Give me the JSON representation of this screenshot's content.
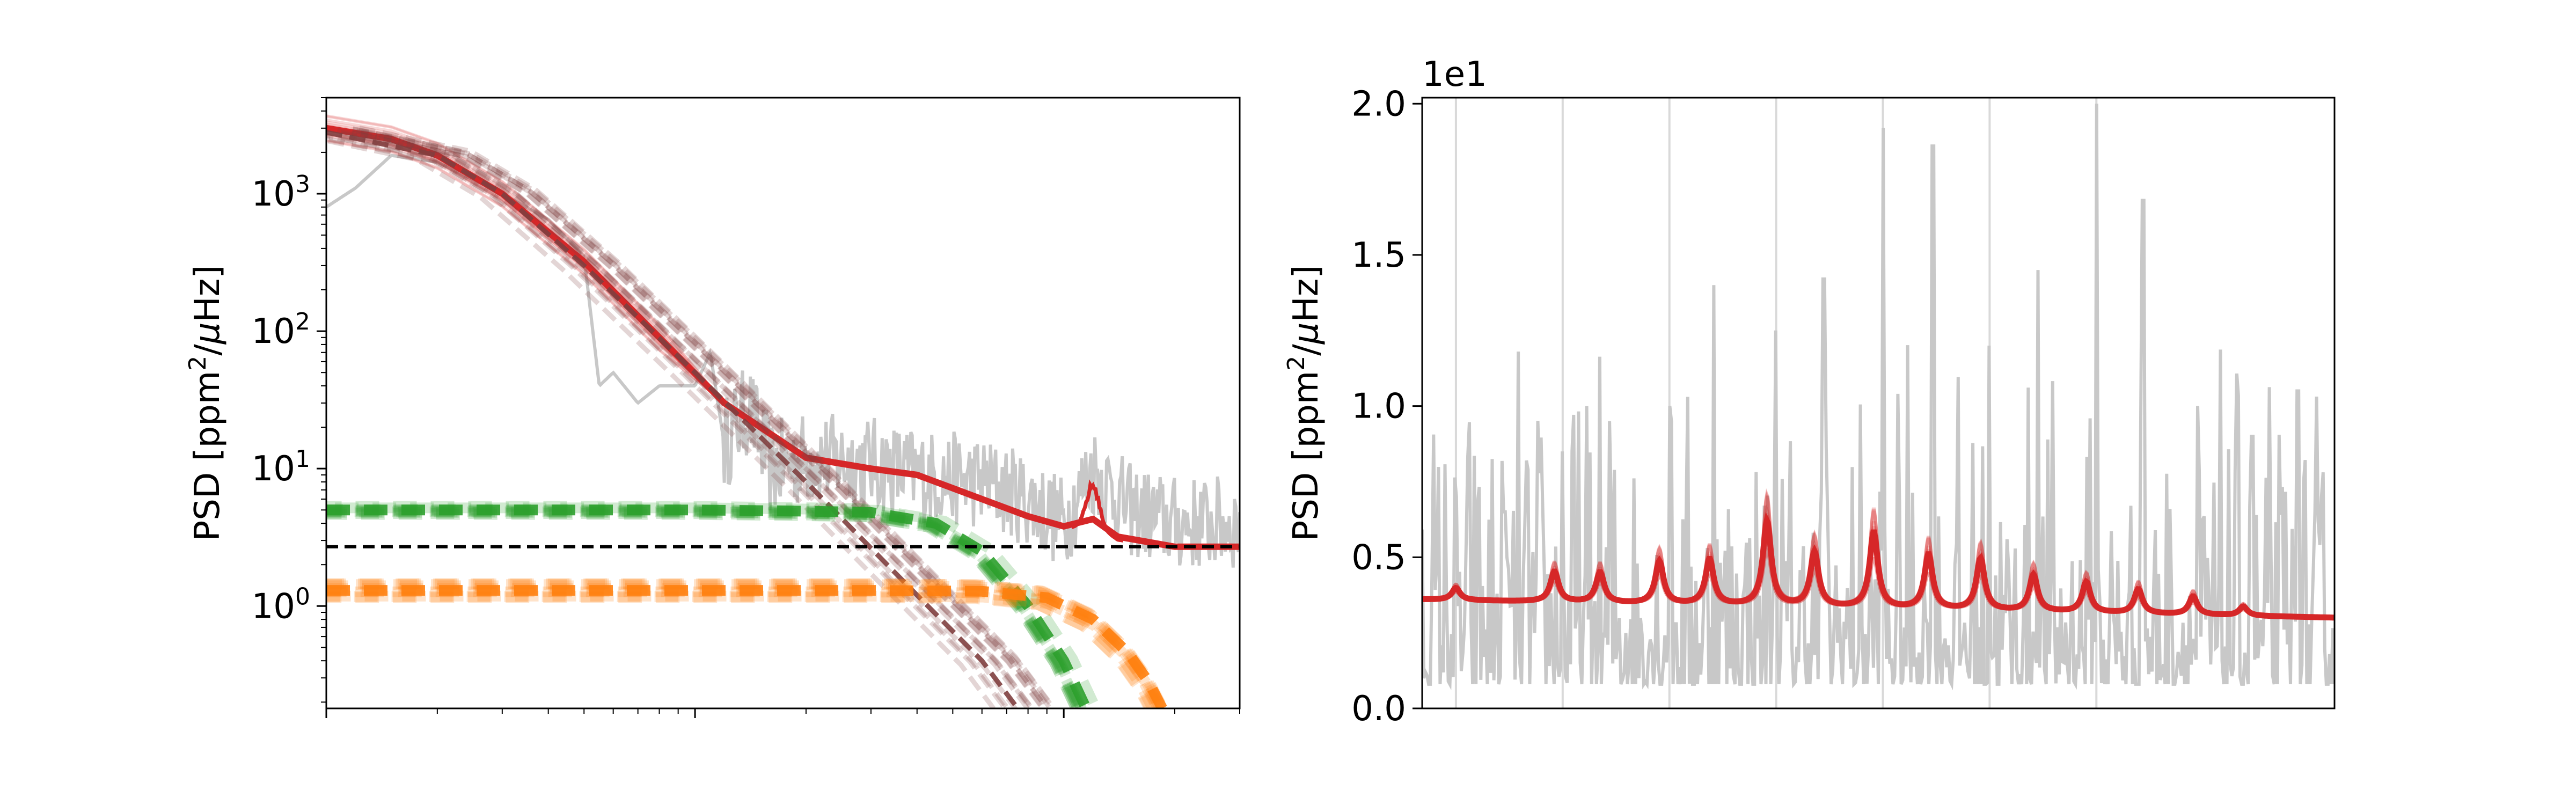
{
  "chart_data": [
    {
      "type": "line",
      "xscale": "log",
      "yscale": "log",
      "xlim": [
        1,
        300
      ],
      "ylim": [
        0.18,
        5000
      ],
      "ylabel": "PSD [ppm$^2$/$\\mu$Hz]",
      "ylabel_parts": {
        "prefix": "PSD [ppm",
        "sup": "2",
        "mid": "/",
        "italic": "μ",
        "suffix": "Hz]"
      },
      "yticks": [
        {
          "value": 1,
          "base": "10",
          "exp": "0"
        },
        {
          "value": 10,
          "base": "10",
          "exp": "1"
        },
        {
          "value": 100,
          "base": "10",
          "exp": "2"
        },
        {
          "value": 1000,
          "base": "10",
          "exp": "3"
        }
      ],
      "xticks_labeled": false,
      "grid": false,
      "series": [
        {
          "role": "observed-psd",
          "color": "#c8c8c8",
          "style": "solid",
          "points": [
            [
              1.0,
              800
            ],
            [
              1.2,
              1100
            ],
            [
              1.5,
              1900
            ],
            [
              2.0,
              1700
            ],
            [
              3.0,
              1000
            ],
            [
              4.0,
              650
            ],
            [
              5.0,
              350
            ],
            [
              5.5,
              40
            ],
            [
              6.0,
              50
            ],
            [
              7.0,
              30
            ],
            [
              8.0,
              40
            ],
            [
              10.0,
              40
            ],
            [
              11.0,
              70
            ],
            [
              12.0,
              15
            ],
            [
              14.0,
              28
            ],
            [
              16.0,
              10
            ],
            [
              20.0,
              12
            ],
            [
              30.0,
              11
            ],
            [
              40.0,
              9
            ],
            [
              60.0,
              8
            ],
            [
              80.0,
              6
            ],
            [
              100.0,
              4
            ],
            [
              120.0,
              10
            ],
            [
              150.0,
              5
            ],
            [
              200.0,
              4
            ],
            [
              300.0,
              4
            ]
          ]
        },
        {
          "role": "model-fit",
          "color": "#d62728",
          "style": "solid",
          "points": [
            [
              1.0,
              3000
            ],
            [
              1.5,
              2500
            ],
            [
              2.0,
              1900
            ],
            [
              3.0,
              1000
            ],
            [
              5.0,
              320
            ],
            [
              8.0,
              90
            ],
            [
              12.0,
              30
            ],
            [
              20.0,
              12
            ],
            [
              30.0,
              10
            ],
            [
              40.0,
              9
            ],
            [
              60.0,
              6
            ],
            [
              80.0,
              4.5
            ],
            [
              100.0,
              3.8
            ],
            [
              120.0,
              4.3
            ],
            [
              140.0,
              3.2
            ],
            [
              200.0,
              2.7
            ],
            [
              300.0,
              2.7
            ]
          ]
        },
        {
          "role": "granulation-component",
          "color": "#7f3f3f",
          "style": "dashed",
          "points": [
            [
              1.0,
              2800
            ],
            [
              2.0,
              1900
            ],
            [
              3.0,
              1000
            ],
            [
              5.0,
              300
            ],
            [
              10.0,
              50
            ],
            [
              20.0,
              8
            ],
            [
              40.0,
              1.2
            ],
            [
              60.0,
              0.4
            ],
            [
              75.0,
              0.18
            ]
          ]
        },
        {
          "role": "granulation-component",
          "color": "#2ca02c",
          "style": "dashed",
          "points": [
            [
              1.0,
              5.0
            ],
            [
              10.0,
              5.0
            ],
            [
              20.0,
              4.9
            ],
            [
              30.0,
              4.8
            ],
            [
              45.0,
              4.0
            ],
            [
              60.0,
              2.5
            ],
            [
              80.0,
              1.0
            ],
            [
              100.0,
              0.4
            ],
            [
              115.0,
              0.18
            ]
          ]
        },
        {
          "role": "granulation-component",
          "color": "#ff7f0e",
          "style": "dashed",
          "points": [
            [
              1.0,
              1.3
            ],
            [
              30.0,
              1.3
            ],
            [
              60.0,
              1.28
            ],
            [
              90.0,
              1.15
            ],
            [
              120.0,
              0.8
            ],
            [
              150.0,
              0.45
            ],
            [
              170.0,
              0.28
            ],
            [
              185.0,
              0.18
            ]
          ]
        },
        {
          "role": "white-noise",
          "color": "#000000",
          "style": "dashed",
          "points": [
            [
              1.0,
              2.7
            ],
            [
              300.0,
              2.7
            ]
          ]
        }
      ]
    },
    {
      "type": "line",
      "xscale": "linear",
      "yscale": "linear",
      "xlim": [
        0,
        100
      ],
      "ylim": [
        0.0,
        2.02
      ],
      "offset_text": "1e1",
      "ylabel": "PSD [ppm$^2$/$\\mu$Hz]",
      "ylabel_parts": {
        "prefix": "PSD [ppm",
        "sup": "2",
        "mid": "/",
        "italic": "μ",
        "suffix": "Hz]"
      },
      "yticks": [
        {
          "value": 0.0,
          "label": "0.0"
        },
        {
          "value": 0.5,
          "label": "0.5"
        },
        {
          "value": 1.0,
          "label": "1.0"
        },
        {
          "value": 1.5,
          "label": "1.5"
        },
        {
          "value": 2.0,
          "label": "2.0"
        }
      ],
      "xticks_labeled": false,
      "grid": false,
      "vertical_lines": [
        3.7,
        15.4,
        27.1,
        38.8,
        50.5,
        62.2,
        73.9
      ],
      "observed_peaks": [
        {
          "x": 3.7,
          "value": 0.7
        },
        {
          "x": 9.0,
          "value": 0.65
        },
        {
          "x": 15.4,
          "value": 0.85
        },
        {
          "x": 20.5,
          "value": 0.95
        },
        {
          "x": 27.1,
          "value": 1.0
        },
        {
          "x": 32.0,
          "value": 1.4
        },
        {
          "x": 38.8,
          "value": 1.25
        },
        {
          "x": 44.0,
          "value": 1.42
        },
        {
          "x": 50.5,
          "value": 1.92
        },
        {
          "x": 56.0,
          "value": 1.86
        },
        {
          "x": 62.2,
          "value": 1.2
        },
        {
          "x": 67.5,
          "value": 1.45
        },
        {
          "x": 73.9,
          "value": 2.0
        },
        {
          "x": 79.0,
          "value": 1.68
        },
        {
          "x": 85.0,
          "value": 1.0
        },
        {
          "x": 91.0,
          "value": 0.9
        },
        {
          "x": 96.0,
          "value": 1.05
        }
      ],
      "model": {
        "color": "#d62728",
        "baseline": [
          [
            0,
            0.36
          ],
          [
            100,
            0.3
          ]
        ],
        "peaks": [
          {
            "x": 3.7,
            "height": 0.04
          },
          {
            "x": 14.5,
            "height": 0.1
          },
          {
            "x": 19.5,
            "height": 0.1
          },
          {
            "x": 26.0,
            "height": 0.14
          },
          {
            "x": 31.5,
            "height": 0.15
          },
          {
            "x": 37.8,
            "height": 0.28
          },
          {
            "x": 43.0,
            "height": 0.18
          },
          {
            "x": 49.5,
            "height": 0.25
          },
          {
            "x": 55.5,
            "height": 0.18
          },
          {
            "x": 61.2,
            "height": 0.17
          },
          {
            "x": 67.0,
            "height": 0.12
          },
          {
            "x": 72.8,
            "height": 0.1
          },
          {
            "x": 78.5,
            "height": 0.08
          },
          {
            "x": 84.5,
            "height": 0.06
          },
          {
            "x": 90.0,
            "height": 0.03
          }
        ]
      }
    }
  ]
}
